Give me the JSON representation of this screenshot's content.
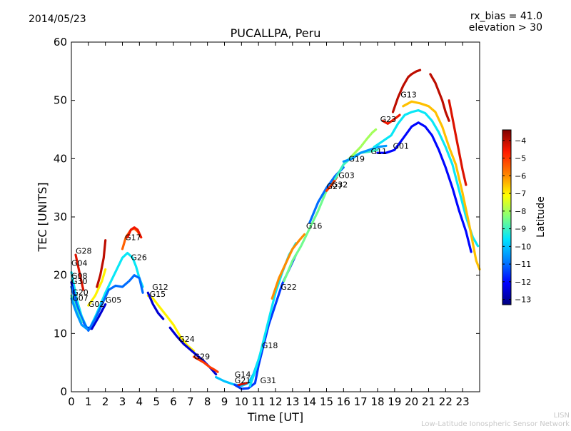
{
  "header": {
    "date": "2014/05/23",
    "rx_bias": "rx_bias = 41.0",
    "elevation": "elevation > 30"
  },
  "footer": {
    "org_short": "LISN",
    "org_long": "Low-Latitude Ionospheric Sensor Network"
  },
  "colorbar": {
    "label": "Latitude",
    "ticks": [
      -4,
      -5,
      -6,
      -7,
      -8,
      -9,
      -10,
      -11,
      -12,
      -13
    ],
    "range": [
      -13.3,
      -3.4
    ],
    "colors": [
      "#00007f",
      "#0000ff",
      "#007fff",
      "#00e5ff",
      "#7fff7f",
      "#ffff00",
      "#ff7f00",
      "#ff1a00",
      "#7f0000"
    ]
  },
  "chart_data": {
    "type": "scatter",
    "title": "PUCALLPA, Peru",
    "xlabel": "Time [UT]",
    "ylabel": "TEC [UNITS]",
    "xlim": [
      0,
      24
    ],
    "ylim": [
      0,
      60
    ],
    "xticks": [
      0,
      1,
      2,
      3,
      4,
      5,
      6,
      7,
      8,
      9,
      10,
      11,
      12,
      13,
      14,
      15,
      16,
      17,
      18,
      19,
      20,
      21,
      22,
      23
    ],
    "yticks": [
      0,
      10,
      20,
      30,
      40,
      50,
      60
    ],
    "grid": false,
    "series": [
      {
        "name": "G28",
        "lat": -4.3,
        "label_at": [
          0.25,
          23.7
        ],
        "points": [
          [
            0.25,
            23.5
          ],
          [
            0.4,
            21.5
          ],
          [
            0.55,
            19.5
          ],
          [
            0.7,
            17.5
          ]
        ]
      },
      {
        "name": "G04",
        "lat": -9.5,
        "label_at": [
          0.0,
          21.6
        ],
        "points": [
          [
            0.0,
            20.5
          ],
          [
            0.3,
            16.0
          ],
          [
            0.6,
            13.0
          ],
          [
            0.9,
            11.0
          ],
          [
            1.1,
            11.0
          ],
          [
            1.5,
            13.5
          ],
          [
            2.0,
            17.0
          ],
          [
            2.5,
            20.0
          ],
          [
            3.0,
            23.0
          ],
          [
            3.3,
            23.8
          ],
          [
            3.6,
            23.0
          ],
          [
            3.8,
            21.5
          ],
          [
            4.0,
            19.5
          ],
          [
            4.2,
            18.0
          ]
        ]
      },
      {
        "name": "G08",
        "lat": -12.5,
        "label_at": [
          0.0,
          19.4
        ],
        "points": [
          [
            0.0,
            18.8
          ],
          [
            0.3,
            15.0
          ],
          [
            0.6,
            12.5
          ],
          [
            0.9,
            11.0
          ],
          [
            1.2,
            10.8
          ],
          [
            1.6,
            12.8
          ],
          [
            2.0,
            15.0
          ]
        ]
      },
      {
        "name": "G30",
        "lat": -11.0,
        "label_at": [
          0.0,
          18.5
        ],
        "points": [
          [
            0.0,
            18.0
          ],
          [
            0.4,
            14.0
          ],
          [
            0.8,
            11.5
          ],
          [
            1.0,
            10.5
          ],
          [
            1.4,
            12.5
          ],
          [
            1.8,
            15.0
          ],
          [
            2.2,
            17.5
          ],
          [
            2.6,
            18.2
          ],
          [
            3.0,
            18.0
          ],
          [
            3.4,
            19.0
          ],
          [
            3.7,
            20.0
          ],
          [
            4.0,
            19.5
          ],
          [
            4.2,
            17.0
          ]
        ]
      },
      {
        "name": "G20",
        "lat": -9.0,
        "label_at": [
          0.05,
          16.6
        ],
        "points": [
          [
            0.0,
            16.5
          ],
          [
            0.3,
            14.0
          ],
          [
            0.6,
            12.0
          ]
        ]
      },
      {
        "name": "G07",
        "lat": -10.5,
        "label_at": [
          0.05,
          15.6
        ],
        "points": [
          [
            0.0,
            16.0
          ],
          [
            0.3,
            13.5
          ],
          [
            0.6,
            11.5
          ],
          [
            0.9,
            10.8
          ]
        ]
      },
      {
        "name": "G02",
        "lat": -7.0,
        "label_at": [
          1.0,
          14.6
        ],
        "points": [
          [
            1.0,
            14.8
          ],
          [
            1.4,
            16.5
          ],
          [
            1.8,
            19.0
          ],
          [
            2.0,
            21.0
          ]
        ]
      },
      {
        "name": "G05",
        "lat": -4.0,
        "label_at": [
          2.0,
          15.3
        ],
        "points": [
          [
            1.5,
            18.0
          ],
          [
            1.7,
            20.0
          ],
          [
            1.9,
            23.0
          ],
          [
            2.0,
            26.0
          ]
        ]
      },
      {
        "name": "G17",
        "lat": -5.5,
        "label_at": [
          3.15,
          26.0
        ],
        "points": [
          [
            3.0,
            24.5
          ],
          [
            3.2,
            26.5
          ],
          [
            3.5,
            27.8
          ],
          [
            3.7,
            28.0
          ],
          [
            3.9,
            27.5
          ],
          [
            4.1,
            26.5
          ]
        ]
      },
      {
        "name": "G26",
        "lat": -4.5,
        "label_at": [
          3.5,
          22.6
        ],
        "points": [
          [
            3.3,
            26.5
          ],
          [
            3.5,
            27.8
          ],
          [
            3.7,
            28.2
          ],
          [
            3.9,
            27.8
          ],
          [
            4.1,
            26.5
          ]
        ]
      },
      {
        "name": "G12",
        "lat": -7.0,
        "label_at": [
          4.75,
          17.5
        ],
        "points": [
          [
            4.5,
            16.5
          ],
          [
            4.8,
            16.0
          ],
          [
            5.2,
            14.5
          ],
          [
            5.6,
            13.0
          ],
          [
            6.0,
            11.5
          ],
          [
            6.4,
            9.5
          ],
          [
            6.8,
            8.0
          ],
          [
            7.2,
            7.0
          ]
        ]
      },
      {
        "name": "G15",
        "lat": -12.5,
        "label_at": [
          4.6,
          16.3
        ],
        "points": [
          [
            4.5,
            17.0
          ],
          [
            4.8,
            15.0
          ],
          [
            5.1,
            13.5
          ],
          [
            5.4,
            12.5
          ]
        ]
      },
      {
        "name": "G24",
        "lat": -12.5,
        "label_at": [
          6.3,
          8.6
        ],
        "points": [
          [
            5.8,
            11.0
          ],
          [
            6.2,
            9.5
          ],
          [
            6.6,
            8.2
          ],
          [
            7.0,
            7.2
          ],
          [
            7.4,
            6.2
          ],
          [
            7.8,
            5.2
          ],
          [
            8.2,
            4.0
          ],
          [
            8.5,
            3.0
          ]
        ]
      },
      {
        "name": "G29",
        "lat": -5.0,
        "label_at": [
          7.2,
          5.6
        ],
        "points": [
          [
            7.2,
            6.0
          ],
          [
            7.5,
            5.5
          ],
          [
            7.8,
            5.0
          ],
          [
            8.1,
            4.3
          ],
          [
            8.4,
            3.8
          ],
          [
            8.6,
            3.4
          ]
        ]
      },
      {
        "name": "G14",
        "lat": -10.0,
        "label_at": [
          9.6,
          2.5
        ],
        "points": [
          [
            8.5,
            2.5
          ],
          [
            9.0,
            1.8
          ],
          [
            9.5,
            1.3
          ],
          [
            10.0,
            1.0
          ],
          [
            10.4,
            1.5
          ],
          [
            10.7,
            3.0
          ],
          [
            11.0,
            5.5
          ]
        ]
      },
      {
        "name": "G21",
        "lat": -4.2,
        "label_at": [
          9.6,
          1.5
        ],
        "points": [
          [
            9.7,
            1.0
          ],
          [
            10.0,
            1.3
          ],
          [
            10.3,
            1.5
          ]
        ]
      },
      {
        "name": "G31",
        "lat": -11.5,
        "label_at": [
          11.1,
          1.5
        ],
        "points": [
          [
            9.6,
            1.2
          ],
          [
            10.0,
            0.5
          ],
          [
            10.4,
            0.6
          ],
          [
            10.8,
            1.5
          ],
          [
            11.0,
            4.5
          ],
          [
            11.3,
            8.0
          ],
          [
            11.6,
            11.5
          ],
          [
            12.0,
            15.0
          ],
          [
            12.4,
            18.5
          ],
          [
            12.8,
            21.0
          ],
          [
            13.2,
            23.5
          ]
        ]
      },
      {
        "name": "G18",
        "lat": -9.5,
        "label_at": [
          11.2,
          7.5
        ],
        "points": [
          [
            10.5,
            1.0
          ],
          [
            10.8,
            3.5
          ],
          [
            11.1,
            6.5
          ],
          [
            11.4,
            10.0
          ],
          [
            11.7,
            13.5
          ],
          [
            12.0,
            17.0
          ],
          [
            12.4,
            20.5
          ],
          [
            12.8,
            23.5
          ],
          [
            13.2,
            25.5
          ]
        ]
      },
      {
        "name": "G22",
        "lat": -6.0,
        "label_at": [
          12.3,
          17.5
        ],
        "points": [
          [
            11.8,
            16.0
          ],
          [
            12.2,
            19.5
          ],
          [
            12.6,
            22.0
          ],
          [
            13.0,
            24.5
          ],
          [
            13.4,
            26.0
          ],
          [
            13.7,
            27.0
          ]
        ]
      },
      {
        "name": "G16",
        "lat": -8.5,
        "label_at": [
          13.8,
          28.0
        ],
        "points": [
          [
            12.5,
            19.0
          ],
          [
            13.0,
            22.5
          ],
          [
            13.5,
            25.0
          ],
          [
            14.0,
            28.0
          ],
          [
            14.5,
            31.0
          ],
          [
            15.0,
            34.5
          ],
          [
            15.5,
            36.5
          ],
          [
            16.0,
            39.0
          ],
          [
            16.5,
            40.5
          ]
        ]
      },
      {
        "name": "G27",
        "lat": -11.0,
        "label_at": [
          15.0,
          34.8
        ],
        "points": [
          [
            14.0,
            29.0
          ],
          [
            14.5,
            32.5
          ],
          [
            15.0,
            35.0
          ],
          [
            15.5,
            37.0
          ],
          [
            16.0,
            38.5
          ]
        ]
      },
      {
        "name": "G32",
        "lat": -5.0,
        "label_at": [
          15.3,
          35.1
        ],
        "points": [
          [
            15.0,
            34.5
          ],
          [
            15.3,
            35.5
          ],
          [
            15.6,
            36.8
          ]
        ]
      },
      {
        "name": "G03",
        "lat": -9.0,
        "label_at": [
          15.7,
          36.7
        ],
        "points": [
          [
            15.5,
            36.5
          ],
          [
            16.0,
            39.0
          ],
          [
            16.5,
            40.3
          ],
          [
            17.0,
            41.0
          ],
          [
            17.5,
            41.2
          ],
          [
            18.0,
            41.5
          ]
        ]
      },
      {
        "name": "G19",
        "lat": -10.5,
        "label_at": [
          16.3,
          39.5
        ],
        "points": [
          [
            16.0,
            39.5
          ],
          [
            16.5,
            40.0
          ],
          [
            17.0,
            41.0
          ],
          [
            17.5,
            41.5
          ],
          [
            18.0,
            42.0
          ],
          [
            18.5,
            42.2
          ]
        ]
      },
      {
        "name": "G11",
        "lat": -8.0,
        "label_at": [
          17.6,
          40.8
        ],
        "points": [
          [
            16.5,
            40.5
          ],
          [
            17.0,
            42.0
          ],
          [
            17.4,
            43.5
          ],
          [
            17.7,
            44.5
          ],
          [
            17.9,
            45.0
          ]
        ]
      },
      {
        "name": "G01",
        "lat": -12.0,
        "label_at": [
          18.9,
          41.7
        ],
        "points": [
          [
            18.0,
            41.0
          ],
          [
            18.5,
            41.0
          ],
          [
            19.0,
            41.5
          ],
          [
            19.5,
            43.5
          ],
          [
            20.0,
            45.5
          ],
          [
            20.4,
            46.2
          ],
          [
            20.8,
            45.5
          ],
          [
            21.2,
            44.0
          ],
          [
            21.6,
            41.5
          ],
          [
            22.0,
            38.5
          ],
          [
            22.4,
            35.0
          ],
          [
            22.8,
            31.0
          ],
          [
            23.2,
            27.5
          ],
          [
            23.5,
            24.0
          ]
        ]
      },
      {
        "name": "G23",
        "lat": -4.5,
        "label_at": [
          18.15,
          46.3
        ],
        "points": [
          [
            18.3,
            46.5
          ],
          [
            18.6,
            46.0
          ],
          [
            19.0,
            46.8
          ],
          [
            19.3,
            47.5
          ]
        ]
      },
      {
        "name": "G13",
        "lat": -4.0,
        "label_at": [
          19.35,
          50.5
        ],
        "points": [
          [
            18.9,
            48.0
          ],
          [
            19.2,
            50.5
          ],
          [
            19.5,
            52.5
          ],
          [
            19.8,
            54.0
          ],
          [
            20.0,
            54.5
          ],
          [
            20.3,
            55.0
          ],
          [
            20.5,
            55.2
          ]
        ]
      },
      {
        "name": "",
        "lat": -9.5,
        "label_at": [
          0,
          0
        ],
        "points": [
          [
            17.8,
            42.0
          ],
          [
            18.3,
            43.0
          ],
          [
            18.8,
            44.0
          ],
          [
            19.2,
            46.0
          ],
          [
            19.6,
            47.5
          ],
          [
            20.0,
            48.0
          ],
          [
            20.4,
            48.3
          ],
          [
            20.8,
            47.8
          ],
          [
            21.2,
            46.5
          ],
          [
            21.6,
            44.5
          ],
          [
            22.0,
            42.0
          ],
          [
            22.4,
            39.0
          ],
          [
            22.8,
            34.5
          ],
          [
            23.2,
            30.0
          ],
          [
            23.6,
            26.5
          ],
          [
            23.9,
            25.0
          ]
        ]
      },
      {
        "name": "",
        "lat": -6.5,
        "label_at": [
          0,
          0
        ],
        "points": [
          [
            19.5,
            49.0
          ],
          [
            20.0,
            49.8
          ],
          [
            20.5,
            49.5
          ],
          [
            21.0,
            49.0
          ],
          [
            21.4,
            48.0
          ],
          [
            21.8,
            45.5
          ],
          [
            22.2,
            42.0
          ],
          [
            22.6,
            39.0
          ],
          [
            23.0,
            34.0
          ],
          [
            23.4,
            28.5
          ],
          [
            23.8,
            22.5
          ],
          [
            24.0,
            21.0
          ]
        ]
      },
      {
        "name": "",
        "lat": -4.0,
        "label_at": [
          0,
          0
        ],
        "points": [
          [
            21.1,
            54.5
          ],
          [
            21.4,
            53.0
          ],
          [
            21.8,
            50.0
          ],
          [
            22.0,
            48.0
          ],
          [
            22.2,
            46.5
          ]
        ]
      },
      {
        "name": "",
        "lat": -4.3,
        "label_at": [
          0,
          0
        ],
        "points": [
          [
            22.2,
            50.0
          ],
          [
            22.4,
            47.0
          ],
          [
            22.6,
            44.0
          ],
          [
            22.8,
            41.0
          ],
          [
            23.0,
            38.0
          ],
          [
            23.2,
            35.5
          ]
        ]
      }
    ]
  }
}
